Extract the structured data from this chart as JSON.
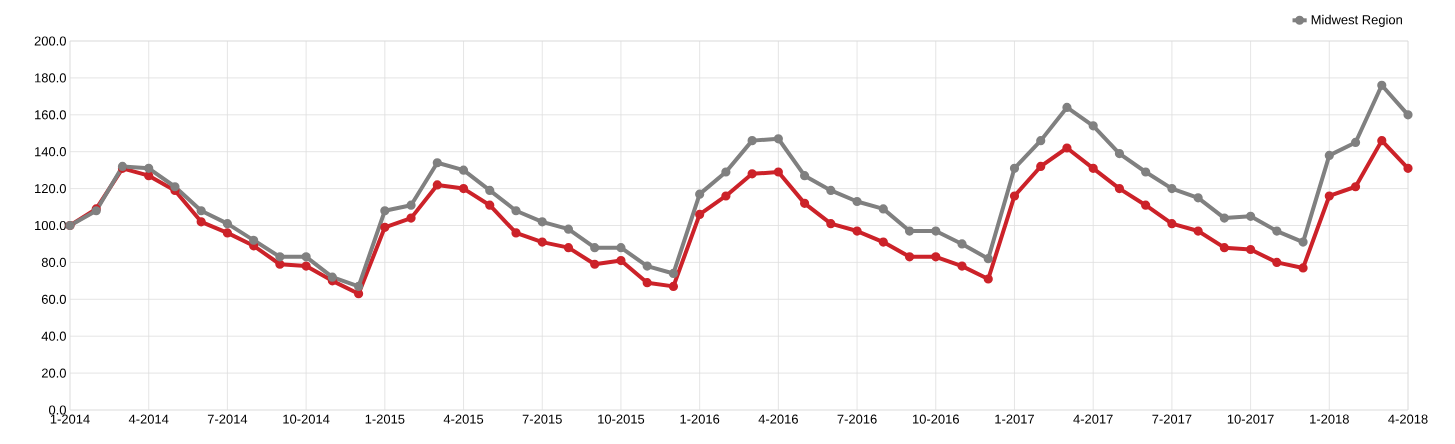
{
  "chart_data": {
    "type": "line",
    "categories": [
      "1-2014",
      null,
      null,
      "4-2014",
      null,
      null,
      "7-2014",
      null,
      null,
      "10-2014",
      null,
      null,
      "1-2015",
      null,
      null,
      "4-2015",
      null,
      null,
      "7-2015",
      null,
      null,
      "10-2015",
      null,
      null,
      "1-2016",
      null,
      null,
      "4-2016",
      null,
      null,
      "7-2016",
      null,
      null,
      "10-2016",
      null,
      null,
      "1-2017",
      null,
      null,
      "4-2017",
      null,
      null,
      "7-2017",
      null,
      null,
      "10-2017",
      null,
      null,
      "1-2018",
      null,
      null,
      "4-2018"
    ],
    "series": [
      {
        "color": "#cc2229",
        "values": [
          100,
          109,
          131,
          127,
          119,
          102,
          96,
          89,
          79,
          78,
          70,
          63,
          99,
          104,
          122,
          120,
          111,
          96,
          91,
          88,
          79,
          81,
          69,
          67,
          106,
          116,
          128,
          129,
          112,
          101,
          97,
          91,
          83,
          83,
          78,
          71,
          116,
          132,
          142,
          131,
          120,
          111,
          101,
          97,
          88,
          87,
          80,
          77,
          116,
          121,
          146,
          131
        ]
      },
      {
        "name": "Midwest Region",
        "color": "#808080",
        "values": [
          100,
          108,
          132,
          131,
          121,
          108,
          101,
          92,
          83,
          83,
          72,
          67,
          108,
          111,
          134,
          130,
          119,
          108,
          102,
          98,
          88,
          88,
          78,
          74,
          117,
          129,
          146,
          147,
          127,
          119,
          113,
          109,
          97,
          97,
          90,
          82,
          131,
          146,
          164,
          154,
          139,
          129,
          120,
          115,
          104,
          105,
          97,
          91,
          138,
          145,
          176,
          160
        ]
      }
    ],
    "ylim": [
      0,
      200
    ],
    "yticks": [
      {
        "value": 0,
        "label": "0.0"
      },
      {
        "value": 20,
        "label": "20.0"
      },
      {
        "value": 40,
        "label": "40.0"
      },
      {
        "value": 60,
        "label": "60.0"
      },
      {
        "value": 80,
        "label": "80.0"
      },
      {
        "value": 100,
        "label": "100.0"
      },
      {
        "value": 120,
        "label": "120.0"
      },
      {
        "value": 140,
        "label": "140.0"
      },
      {
        "value": 160,
        "label": "160.0"
      },
      {
        "value": 180,
        "label": "180.0"
      },
      {
        "value": 200,
        "label": "200.0"
      }
    ],
    "grid": true,
    "legend": "top right",
    "marker": "circle",
    "line_style": "solid"
  }
}
